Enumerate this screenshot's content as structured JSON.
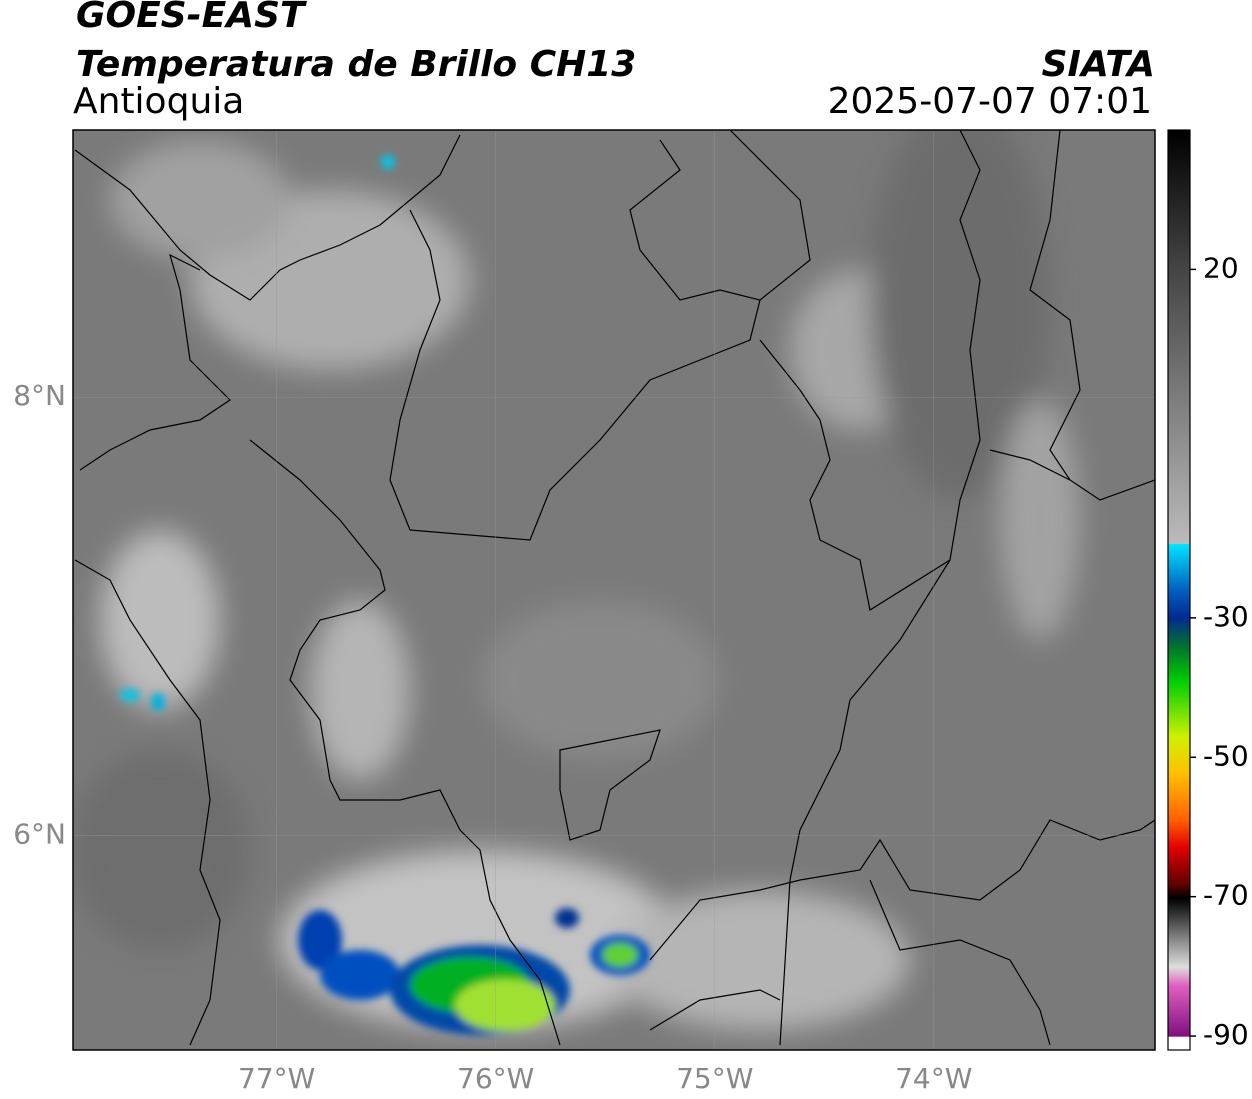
{
  "map": {
    "title": "GOES-EAST",
    "subtitle": "Temperatura de Brillo CH13",
    "region": "Antioquia",
    "source": "SIATA",
    "datetime": "2025-07-07 07:01",
    "xlim": [
      -77.93,
      -72.99
    ],
    "ylim": [
      5.02,
      9.22
    ],
    "xticks": [
      {
        "value": -77,
        "label": "77°W"
      },
      {
        "value": -76,
        "label": "76°W"
      },
      {
        "value": -75,
        "label": "75°W"
      },
      {
        "value": -74,
        "label": "74°W"
      }
    ],
    "yticks": [
      {
        "value": 8,
        "label": "8°N"
      },
      {
        "value": 6,
        "label": "6°N"
      }
    ],
    "colorbar": {
      "lim": [
        -92,
        40
      ],
      "ticks": [
        20,
        -30,
        -50,
        -70,
        -90
      ]
    }
  }
}
